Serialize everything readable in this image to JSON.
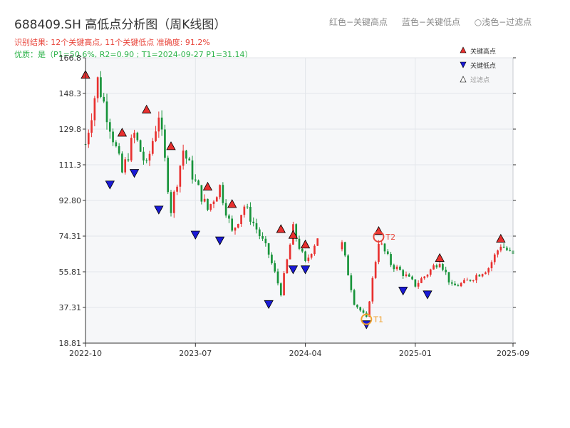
{
  "header": {
    "title": "688409.SH 高低点分析图（周K线图）",
    "summary": "识别结果: 12个关键高点, 11个关键低点  准确度: 91.2%",
    "quality": "优质：是（P1=50.6%, R2=0.90 ; T1=2024-09-27 P1=31.14）"
  },
  "top_legend": {
    "red": "红色−关键高点",
    "blue": "蓝色−关键低点",
    "light": "○浅色−过滤点"
  },
  "colors": {
    "up": "#e8302f",
    "down": "#17933a",
    "high_marker": "#e8302f",
    "low_marker": "#1a1ad6",
    "t1_ring": "#f0a12e",
    "t2_ring": "#e8443a",
    "plot_bg": "#f6f7f9",
    "grid": "#e3e6ea"
  },
  "chart_data": {
    "type": "candlestick",
    "title": "688409.SH 高低点分析图（周K线图）",
    "xlabel": "",
    "ylabel": "",
    "grid": true,
    "legend_position": "top-right",
    "xlim": [
      "2022-10",
      "2025-09"
    ],
    "ylim": [
      18.81,
      166.8
    ],
    "y_ticks": [
      "18.81",
      "37.31",
      "55.81",
      "74.31",
      "92.80",
      "111.3",
      "129.8",
      "148.3",
      "166.8"
    ],
    "x_ticks": [
      "2022-10",
      "2023-07",
      "2024-04",
      "2025-01",
      "2025-09"
    ],
    "legend": [
      "关键高点",
      "关键低点",
      "过滤点"
    ],
    "anchors": [
      [
        "2022-10",
        122
      ],
      [
        "2022-11",
        155
      ],
      [
        "2022-12",
        132
      ],
      [
        "2023-01",
        107
      ],
      [
        "2023-02",
        127
      ],
      [
        "2023-03",
        110
      ],
      [
        "2023-04",
        138
      ],
      [
        "2023-05",
        88
      ],
      [
        "2023-06",
        119
      ],
      [
        "2023-07",
        102
      ],
      [
        "2023-08",
        88
      ],
      [
        "2023-09",
        100
      ],
      [
        "2023-10",
        76
      ],
      [
        "2023-11",
        90
      ],
      [
        "2023-12",
        78
      ],
      [
        "2024-01",
        65
      ],
      [
        "2024-02",
        45
      ],
      [
        "2024-03",
        78
      ],
      [
        "2024-04",
        60
      ],
      [
        "2024-05",
        74
      ],
      [
        "2024-06",
        60
      ],
      [
        "2024-07",
        70
      ],
      [
        "2024-08",
        40
      ],
      [
        "2024-09",
        31.5
      ],
      [
        "2024-10",
        72
      ],
      [
        "2024-11",
        60
      ],
      [
        "2024-12",
        55
      ],
      [
        "2025-01",
        49
      ],
      [
        "2025-02",
        55
      ],
      [
        "2025-03",
        62
      ],
      [
        "2025-04",
        48
      ],
      [
        "2025-05",
        50
      ],
      [
        "2025-06",
        54
      ],
      [
        "2025-07",
        58
      ],
      [
        "2025-08",
        70
      ],
      [
        "2025-09",
        64
      ]
    ],
    "gaps": [
      [
        "2024-05",
        "2024-07"
      ]
    ],
    "key_highs": [
      {
        "date": "2022-10",
        "value": 155
      },
      {
        "date": "2023-01",
        "value": 125
      },
      {
        "date": "2023-03",
        "value": 137
      },
      {
        "date": "2023-05",
        "value": 118
      },
      {
        "date": "2023-08",
        "value": 97
      },
      {
        "date": "2023-10",
        "value": 88
      },
      {
        "date": "2024-02",
        "value": 75
      },
      {
        "date": "2024-03",
        "value": 72
      },
      {
        "date": "2024-04",
        "value": 67
      },
      {
        "date": "2024-10",
        "value": 74
      },
      {
        "date": "2025-03",
        "value": 60
      },
      {
        "date": "2025-08",
        "value": 70
      }
    ],
    "key_lows": [
      {
        "date": "2022-12",
        "value": 104
      },
      {
        "date": "2023-02",
        "value": 110
      },
      {
        "date": "2023-04",
        "value": 91
      },
      {
        "date": "2023-07",
        "value": 78
      },
      {
        "date": "2023-09",
        "value": 75
      },
      {
        "date": "2024-01",
        "value": 42
      },
      {
        "date": "2024-03",
        "value": 60
      },
      {
        "date": "2024-04",
        "value": 60
      },
      {
        "date": "2024-09",
        "value": 31.5
      },
      {
        "date": "2024-12",
        "value": 49
      },
      {
        "date": "2025-02",
        "value": 47
      }
    ],
    "annotations": [
      {
        "label": "T1",
        "date": "2024-09",
        "value": 31.14
      },
      {
        "label": "T2",
        "date": "2024-10",
        "value": 74
      }
    ]
  }
}
